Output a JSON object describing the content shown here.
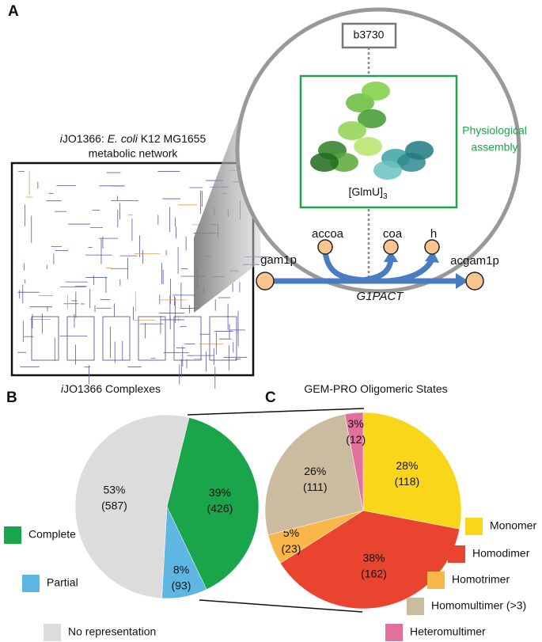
{
  "panel_labels": [
    "A",
    "B",
    "C"
  ],
  "panel_a": {
    "network_title": [
      "i",
      "JO1366: ",
      "E. coli",
      " K12 MG1655"
    ],
    "network_title_line2": "metabolic network",
    "gene": "b3730",
    "assembly_label": [
      "Physiological",
      "assembly"
    ],
    "complex": {
      "name": "[GlmU]",
      "subscript": "3"
    },
    "metabolites": [
      "gam1p",
      "accoa",
      "coa",
      "h",
      "acgam1p"
    ],
    "reaction": "G1PACT"
  },
  "chart_data": [
    {
      "type": "pie",
      "title": [
        "i",
        "JO1366 Complexes"
      ],
      "categories": [
        "Complete",
        "Partial",
        "No representation"
      ],
      "values": [
        39,
        8,
        53
      ],
      "value_labels": [
        "39%",
        "8%",
        "53%"
      ],
      "counts": [
        426,
        93,
        587
      ],
      "count_labels": [
        "(426)",
        "(93)",
        "(587)"
      ],
      "colors": [
        "#1aa54b",
        "#5db7e2",
        "#dcdcdc"
      ]
    },
    {
      "type": "pie",
      "title": [
        "",
        "GEM-PRO Oligomeric States"
      ],
      "categories": [
        "Monomer",
        "Homodimer",
        "Homotrimer",
        "Homomultimer (>3)",
        "Heteromultimer"
      ],
      "values": [
        28,
        38,
        5,
        26,
        3
      ],
      "value_labels": [
        "28%",
        "38%",
        "5%",
        "26%",
        "3%"
      ],
      "counts": [
        118,
        162,
        23,
        111,
        12
      ],
      "count_labels": [
        "(118)",
        "(162)",
        "(23)",
        "(111)",
        "(12)"
      ],
      "colors": [
        "#fad61b",
        "#e8442f",
        "#fab749",
        "#cbbb9f",
        "#e2709d"
      ]
    }
  ]
}
